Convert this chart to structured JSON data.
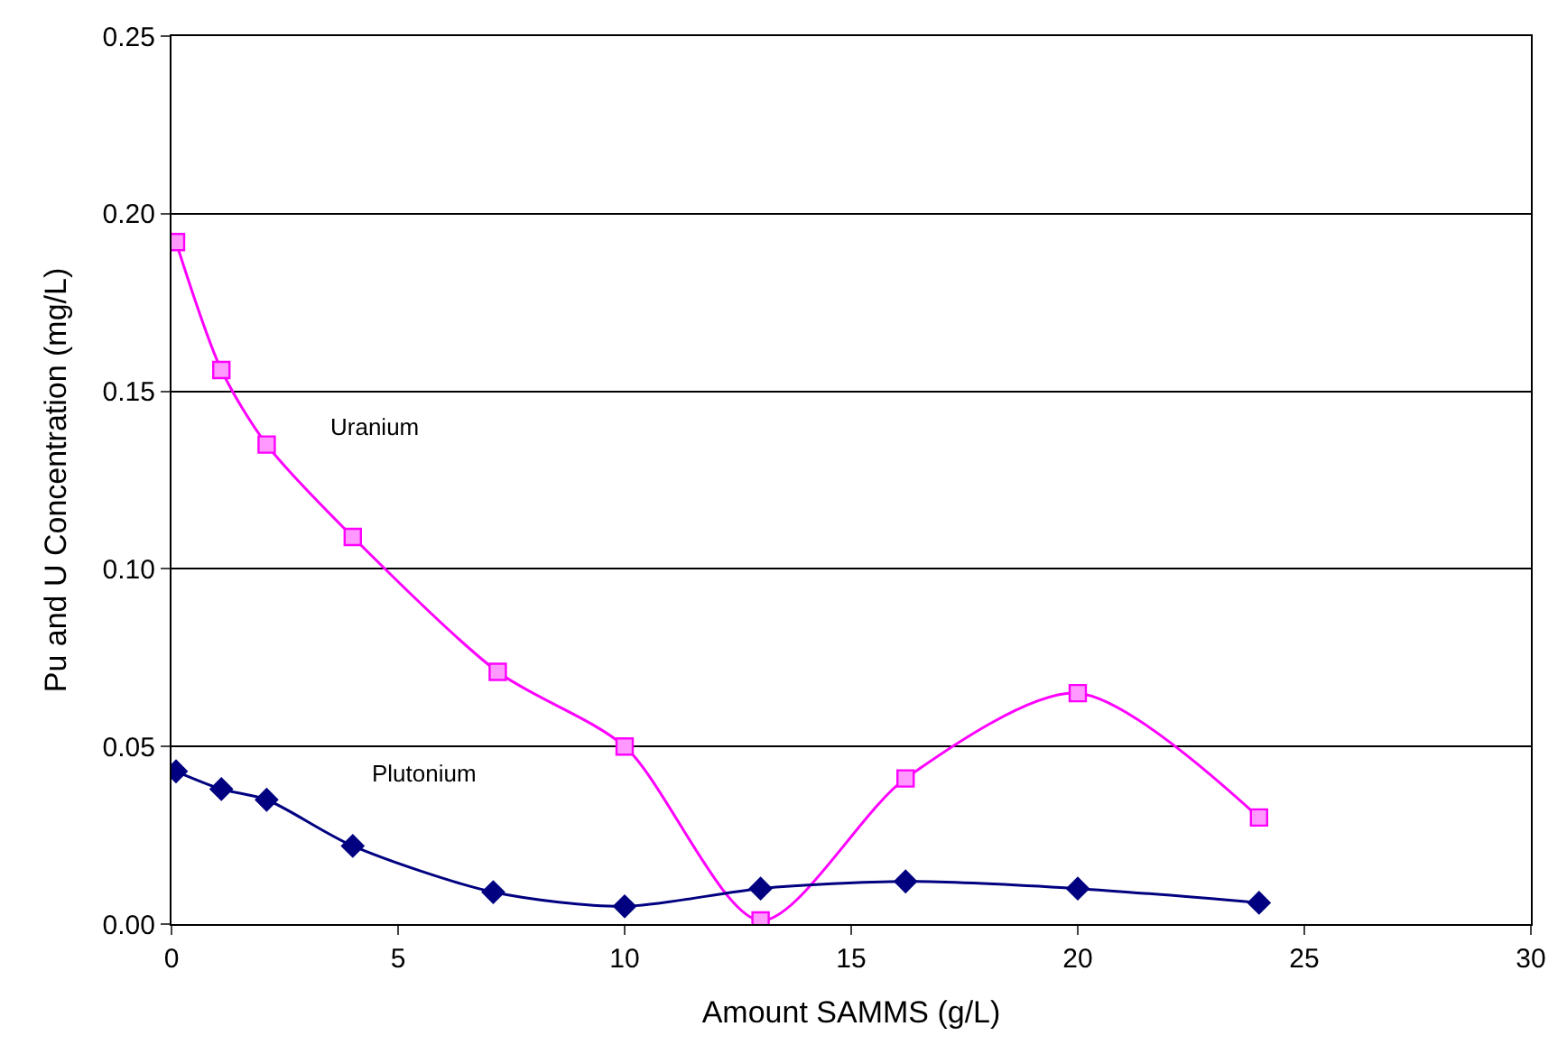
{
  "chart_data": {
    "type": "line",
    "xlabel": "Amount SAMMS (g/L)",
    "ylabel": "Pu and U Concentration (mg/L)",
    "xlim": [
      0,
      30
    ],
    "xticks": [
      0,
      5,
      10,
      15,
      20,
      25,
      30
    ],
    "ylim": [
      0,
      0.25
    ],
    "yticks": [
      {
        "value": 0,
        "label": "0.00"
      },
      {
        "value": 0.05,
        "label": "0.05"
      },
      {
        "value": 0.1,
        "label": "0.10"
      },
      {
        "value": 0.15,
        "label": "0.15"
      },
      {
        "value": 0.2,
        "label": "0.20"
      },
      {
        "value": 0.25,
        "label": "0.25"
      }
    ],
    "grid": "y",
    "legend": false,
    "series": [
      {
        "name": "Uranium",
        "color": "#ff00ff",
        "marker": "square",
        "x": [
          0.1,
          1.1,
          2.1,
          4.0,
          7.2,
          10.0,
          13.0,
          16.2,
          20.0,
          24.0
        ],
        "values": [
          0.192,
          0.156,
          0.135,
          0.109,
          0.071,
          0.05,
          0.001,
          0.041,
          0.065,
          0.03
        ]
      },
      {
        "name": "Plutonium",
        "color": "#000080",
        "marker": "diamond",
        "x": [
          0.1,
          1.1,
          2.1,
          4.0,
          7.1,
          10.0,
          13.0,
          16.2,
          20.0,
          24.0
        ],
        "values": [
          0.043,
          0.038,
          0.035,
          0.022,
          0.009,
          0.005,
          0.01,
          0.012,
          0.01,
          0.006
        ]
      }
    ]
  }
}
